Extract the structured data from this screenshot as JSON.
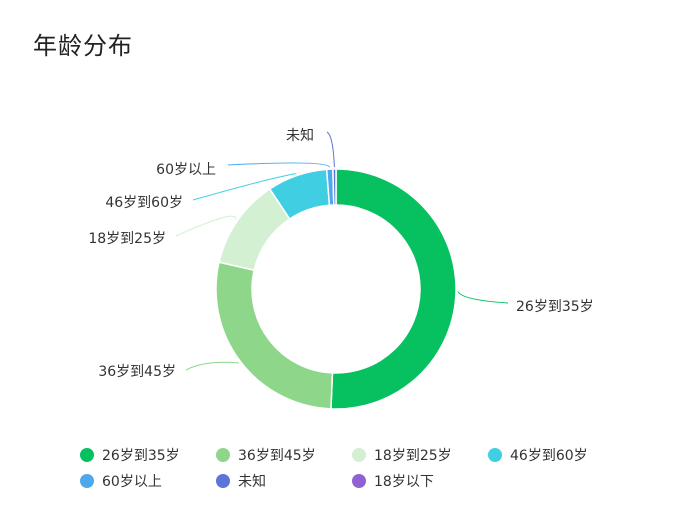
{
  "title": "年龄分布",
  "chart_data": {
    "type": "pie",
    "variant": "donut",
    "title": "年龄分布",
    "series": [
      {
        "name": "26岁到35岁",
        "value": 49.0,
        "color": "#07C160"
      },
      {
        "name": "36岁到45岁",
        "value": 27.0,
        "color": "#8ED68A"
      },
      {
        "name": "18岁到25岁",
        "value": 11.7,
        "color": "#D3F0D3"
      },
      {
        "name": "46岁到60岁",
        "value": 7.8,
        "color": "#40CEE3"
      },
      {
        "name": "60岁以上",
        "value": 0.8,
        "color": "#4DA8EC"
      },
      {
        "name": "未知",
        "value": 0.4,
        "color": "#5C75D6"
      },
      {
        "name": "18岁以下",
        "value": 0.0,
        "color": "#9061D2"
      }
    ],
    "legend_position": "bottom"
  }
}
